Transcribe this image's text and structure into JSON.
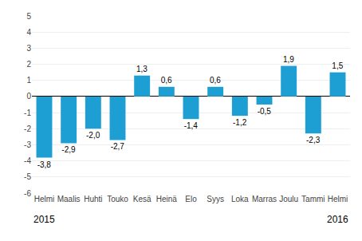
{
  "chart_data": {
    "type": "bar",
    "categories": [
      "Helmi",
      "Maalis",
      "Huhti",
      "Touko",
      "Kesä",
      "Heinä",
      "Elo",
      "Syys",
      "Loka",
      "Marras",
      "Joulu",
      "Tammi",
      "Helmi"
    ],
    "values": [
      -3.8,
      -2.9,
      -2.0,
      -2.7,
      1.3,
      0.6,
      -1.4,
      0.6,
      -1.2,
      -0.5,
      1.9,
      -2.3,
      1.5
    ],
    "value_labels": [
      "-3,8",
      "-2,9",
      "-2,0",
      "-2,7",
      "1,3",
      "0,6",
      "-1,4",
      "0,6",
      "-1,2",
      "-0,5",
      "1,9",
      "-2,3",
      "1,5"
    ],
    "data_labels": true,
    "color": "#1e9fd4",
    "ylim": [
      -6,
      5
    ],
    "yticks": [
      -6,
      -5,
      -4,
      -3,
      -2,
      -1,
      0,
      1,
      2,
      3,
      4,
      5
    ],
    "grid": true,
    "annotations": [
      {
        "text": "2015",
        "x": 0
      },
      {
        "text": "2016",
        "x": 12
      }
    ]
  }
}
